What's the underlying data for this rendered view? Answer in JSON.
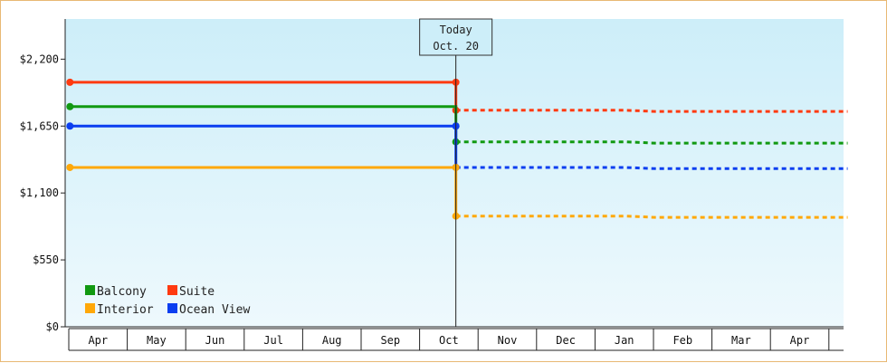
{
  "chart_data": {
    "type": "line",
    "title": "",
    "xlabel": "",
    "ylabel": "",
    "ylim": [
      0,
      2530
    ],
    "y_ticks": [
      {
        "value": 0,
        "label": "$0"
      },
      {
        "value": 550,
        "label": "$550"
      },
      {
        "value": 1100,
        "label": "$1,100"
      },
      {
        "value": 1650,
        "label": "$1,650"
      },
      {
        "value": 2200,
        "label": "$2,200"
      }
    ],
    "months": [
      "Apr",
      "May",
      "Jun",
      "Jul",
      "Aug",
      "Sep",
      "Oct",
      "Nov",
      "Dec",
      "Jan",
      "Feb",
      "Mar",
      "Apr"
    ],
    "today": {
      "line1": "Today",
      "line2": "Oct. 20",
      "month_index": 6.6
    },
    "x_range": [
      -0.02,
      13.3
    ],
    "series": [
      {
        "name": "Suite",
        "color": "#ff3a10",
        "history": [
          [
            0,
            2010
          ],
          [
            6.6,
            2010
          ],
          [
            6.6,
            1780
          ]
        ],
        "forecast": [
          [
            6.6,
            1780
          ],
          [
            9.5,
            1780
          ],
          [
            10.0,
            1770
          ],
          [
            13.3,
            1770
          ]
        ]
      },
      {
        "name": "Balcony",
        "color": "#119911",
        "history": [
          [
            0,
            1810
          ],
          [
            6.6,
            1810
          ],
          [
            6.6,
            1650
          ],
          [
            6.6,
            1520
          ]
        ],
        "forecast": [
          [
            6.6,
            1520
          ],
          [
            9.5,
            1520
          ],
          [
            10.0,
            1510
          ],
          [
            13.3,
            1510
          ]
        ]
      },
      {
        "name": "Ocean View",
        "color": "#0b3ef0",
        "history": [
          [
            0,
            1650
          ],
          [
            6.6,
            1650
          ],
          [
            6.6,
            1310
          ]
        ],
        "forecast": [
          [
            6.6,
            1310
          ],
          [
            9.5,
            1310
          ],
          [
            10.0,
            1300
          ],
          [
            13.3,
            1300
          ]
        ]
      },
      {
        "name": "Interior",
        "color": "#ffa808",
        "history": [
          [
            0,
            1310
          ],
          [
            6.6,
            1310
          ],
          [
            6.6,
            910
          ]
        ],
        "forecast": [
          [
            6.6,
            910
          ],
          [
            9.5,
            910
          ],
          [
            10.0,
            900
          ],
          [
            13.3,
            900
          ]
        ]
      }
    ],
    "legend": [
      {
        "name": "Balcony",
        "color": "#119911"
      },
      {
        "name": "Suite",
        "color": "#ff3a10"
      },
      {
        "name": "Interior",
        "color": "#ffa808"
      },
      {
        "name": "Ocean View",
        "color": "#0b3ef0"
      }
    ],
    "legend_position": "bottom-left",
    "grid": false
  }
}
